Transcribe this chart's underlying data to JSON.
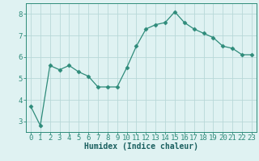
{
  "x": [
    0,
    1,
    2,
    3,
    4,
    5,
    6,
    7,
    8,
    9,
    10,
    11,
    12,
    13,
    14,
    15,
    16,
    17,
    18,
    19,
    20,
    21,
    22,
    23
  ],
  "y": [
    3.7,
    2.8,
    5.6,
    5.4,
    5.6,
    5.3,
    5.1,
    4.6,
    4.6,
    4.6,
    5.5,
    6.5,
    7.3,
    7.5,
    7.6,
    8.1,
    7.6,
    7.3,
    7.1,
    6.9,
    6.5,
    6.4,
    6.1,
    6.1
  ],
  "line_color": "#2e8b7a",
  "marker": "D",
  "marker_size": 2.5,
  "xlabel": "Humidex (Indice chaleur)",
  "xlim": [
    -0.5,
    23.5
  ],
  "ylim": [
    2.5,
    8.5
  ],
  "yticks": [
    3,
    4,
    5,
    6,
    7,
    8
  ],
  "xticks": [
    0,
    1,
    2,
    3,
    4,
    5,
    6,
    7,
    8,
    9,
    10,
    11,
    12,
    13,
    14,
    15,
    16,
    17,
    18,
    19,
    20,
    21,
    22,
    23
  ],
  "bg_color": "#dff2f2",
  "grid_color": "#b8d8d8",
  "axes_color": "#2e8b7a",
  "tick_label_color": "#2e8b7a",
  "xlabel_color": "#1a5f5f",
  "xlabel_fontsize": 7,
  "tick_fontsize": 6.5
}
